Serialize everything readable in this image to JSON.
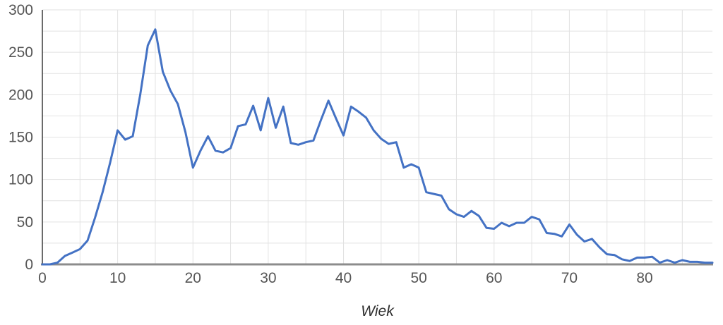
{
  "chart_data": {
    "type": "line",
    "title": "",
    "xlabel": "Wiek",
    "ylabel": "",
    "xlim": [
      0,
      89
    ],
    "ylim": [
      0,
      300
    ],
    "x_tick_labels": [
      0,
      10,
      20,
      30,
      40,
      50,
      60,
      70,
      80
    ],
    "x_grid_step": 5,
    "y_tick_labels": [
      0,
      50,
      100,
      150,
      200,
      250,
      300
    ],
    "y_grid_step": 25,
    "grid": true,
    "legend": false,
    "x": [
      0,
      1,
      2,
      3,
      4,
      5,
      6,
      7,
      8,
      9,
      10,
      11,
      12,
      13,
      14,
      15,
      16,
      17,
      18,
      19,
      20,
      21,
      22,
      23,
      24,
      25,
      26,
      27,
      28,
      29,
      30,
      31,
      32,
      33,
      34,
      35,
      36,
      37,
      38,
      39,
      40,
      41,
      42,
      43,
      44,
      45,
      46,
      47,
      48,
      49,
      50,
      51,
      52,
      53,
      54,
      55,
      56,
      57,
      58,
      59,
      60,
      61,
      62,
      63,
      64,
      65,
      66,
      67,
      68,
      69,
      70,
      71,
      72,
      73,
      74,
      75,
      76,
      77,
      78,
      79,
      80,
      81,
      82,
      83,
      84,
      85,
      86,
      87,
      88,
      89
    ],
    "values": [
      0,
      0,
      2,
      10,
      14,
      18,
      28,
      55,
      85,
      120,
      158,
      147,
      151,
      200,
      258,
      277,
      227,
      205,
      189,
      156,
      114,
      134,
      151,
      134,
      132,
      137,
      163,
      165,
      187,
      158,
      196,
      161,
      186,
      143,
      141,
      144,
      146,
      170,
      193,
      172,
      152,
      186,
      180,
      173,
      158,
      148,
      142,
      144,
      114,
      118,
      114,
      85,
      83,
      81,
      65,
      59,
      56,
      63,
      57,
      43,
      42,
      49,
      45,
      49,
      49,
      56,
      53,
      37,
      36,
      33,
      47,
      35,
      27,
      30,
      20,
      12,
      11,
      6,
      4,
      8,
      8,
      9,
      2,
      5,
      2,
      5,
      3,
      3,
      2,
      2
    ],
    "colors": {
      "line": "#4472c4",
      "grid": "#e2e2e2",
      "axis": "#8c8c8c",
      "y_axis_line": "#3a3a3a",
      "tick_label": "#565656",
      "axis_title": "#2e2e2e"
    }
  }
}
